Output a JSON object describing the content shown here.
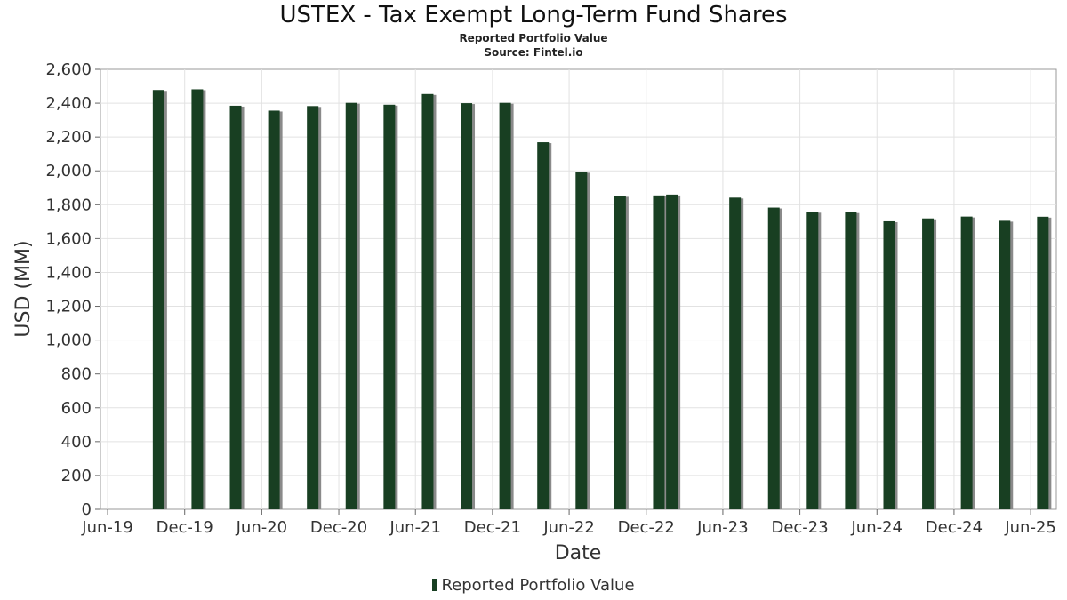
{
  "chart_data": {
    "type": "bar",
    "title": "USTEX - Tax Exempt Long-Term Fund Shares",
    "subtitle": "Reported Portfolio Value",
    "source": "Source: Fintel.io",
    "xlabel": "Date",
    "ylabel": "USD (MM)",
    "ylim": [
      0,
      2600
    ],
    "yticks": [
      "0",
      "200",
      "400",
      "600",
      "800",
      "1,000",
      "1,200",
      "1,400",
      "1,600",
      "1,800",
      "2,000",
      "2,200",
      "2,400",
      "2,600"
    ],
    "xticks": [
      "Jun-19",
      "Dec-19",
      "Jun-20",
      "Dec-20",
      "Jun-21",
      "Dec-21",
      "Jun-22",
      "Dec-22",
      "Jun-23",
      "Dec-23",
      "Jun-24",
      "Dec-24",
      "Jun-25"
    ],
    "xlim": [
      "2019-05-15",
      "2025-08-01"
    ],
    "grid": true,
    "legend_position": "bottom",
    "bar_color": "#183f22",
    "series": [
      {
        "name": "Reported Portfolio Value",
        "x": [
          "2019-09-30",
          "2019-12-31",
          "2020-03-31",
          "2020-06-30",
          "2020-09-30",
          "2020-12-31",
          "2021-03-31",
          "2021-06-30",
          "2021-09-30",
          "2021-12-31",
          "2022-03-31",
          "2022-06-30",
          "2022-09-30",
          "2022-12-31",
          "2023-01-31",
          "2023-06-30",
          "2023-09-30",
          "2023-12-31",
          "2024-03-31",
          "2024-06-30",
          "2024-09-30",
          "2024-12-31",
          "2025-03-31",
          "2025-06-30"
        ],
        "values": [
          2478,
          2482,
          2385,
          2356,
          2383,
          2402,
          2391,
          2454,
          2400,
          2402,
          2169,
          1994,
          1852,
          1855,
          1860,
          1842,
          1783,
          1758,
          1756,
          1702,
          1719,
          1730,
          1705,
          1729
        ]
      }
    ]
  }
}
